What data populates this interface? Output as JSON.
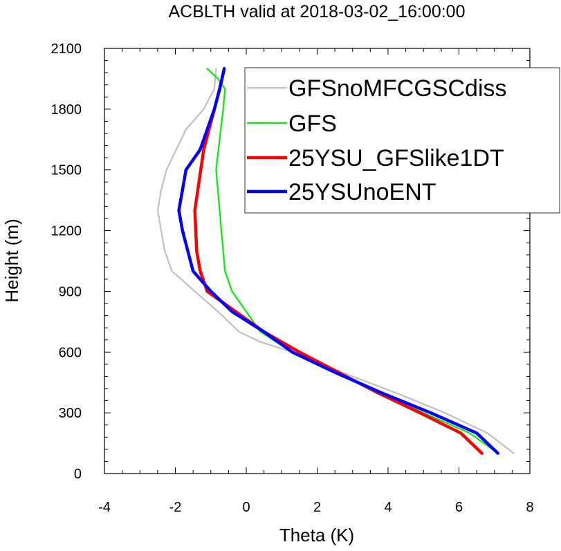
{
  "chart_data": {
    "type": "line",
    "title": "ACBLTH valid at 2018-03-02_16:00:00",
    "xlabel": "Theta (K)",
    "ylabel": "Height (m)",
    "xlim": [
      -4,
      8
    ],
    "ylim": [
      0,
      2100
    ],
    "xticks": [
      "-4",
      "-2",
      "0",
      "2",
      "4",
      "6",
      "8"
    ],
    "yticks": [
      "0",
      "300",
      "600",
      "900",
      "1200",
      "1500",
      "1800",
      "2100"
    ],
    "legend_position": "top-right",
    "series": [
      {
        "name": "GFSnoMFCGSCdiss",
        "color": "#c0c0c0",
        "width": "thin",
        "x": [
          7.55,
          6.8,
          5.6,
          4.2,
          2.7,
          1.3,
          0.4,
          -0.2,
          -0.8,
          -2.1,
          -2.3,
          -2.4,
          -2.5,
          -2.4,
          -2.25,
          -1.7,
          -1.2,
          -0.9,
          -0.85
        ],
        "y": [
          100,
          200,
          300,
          400,
          500,
          600,
          650,
          700,
          800,
          1000,
          1100,
          1200,
          1300,
          1400,
          1500,
          1700,
          1800,
          1900,
          2000
        ]
      },
      {
        "name": "GFS",
        "color": "#00ee00",
        "width": "thin",
        "x": [
          7.1,
          6.3,
          5.0,
          3.7,
          2.5,
          1.3,
          0.4,
          0.0,
          -0.4,
          -0.6,
          -0.7,
          -0.85,
          -0.65,
          -0.6,
          -0.8,
          -1.1
        ],
        "y": [
          100,
          200,
          300,
          400,
          500,
          600,
          700,
          800,
          900,
          1000,
          1200,
          1500,
          1800,
          1900,
          1950,
          2000
        ]
      },
      {
        "name": "25YSU_GFSlike1DT",
        "color": "#ff0000",
        "width": "thick",
        "x": [
          6.65,
          6.05,
          4.9,
          3.7,
          2.6,
          1.5,
          0.5,
          -0.3,
          -0.7,
          -1.1,
          -1.3,
          -1.4,
          -1.45,
          -1.2,
          -0.9,
          -0.75,
          -0.62
        ],
        "y": [
          100,
          200,
          300,
          400,
          500,
          600,
          700,
          800,
          850,
          900,
          1000,
          1100,
          1300,
          1600,
          1800,
          1900,
          2000
        ]
      },
      {
        "name": "25YSUnoENT",
        "color": "#0000ff",
        "width": "thick",
        "x": [
          7.1,
          6.5,
          5.2,
          3.8,
          2.5,
          1.3,
          0.5,
          -0.4,
          -1.0,
          -1.5,
          -1.8,
          -1.9,
          -1.7,
          -1.3,
          -0.9,
          -0.75,
          -0.62
        ],
        "y": [
          100,
          200,
          300,
          400,
          500,
          600,
          700,
          800,
          900,
          1000,
          1200,
          1300,
          1500,
          1600,
          1800,
          1900,
          2000
        ]
      }
    ]
  }
}
